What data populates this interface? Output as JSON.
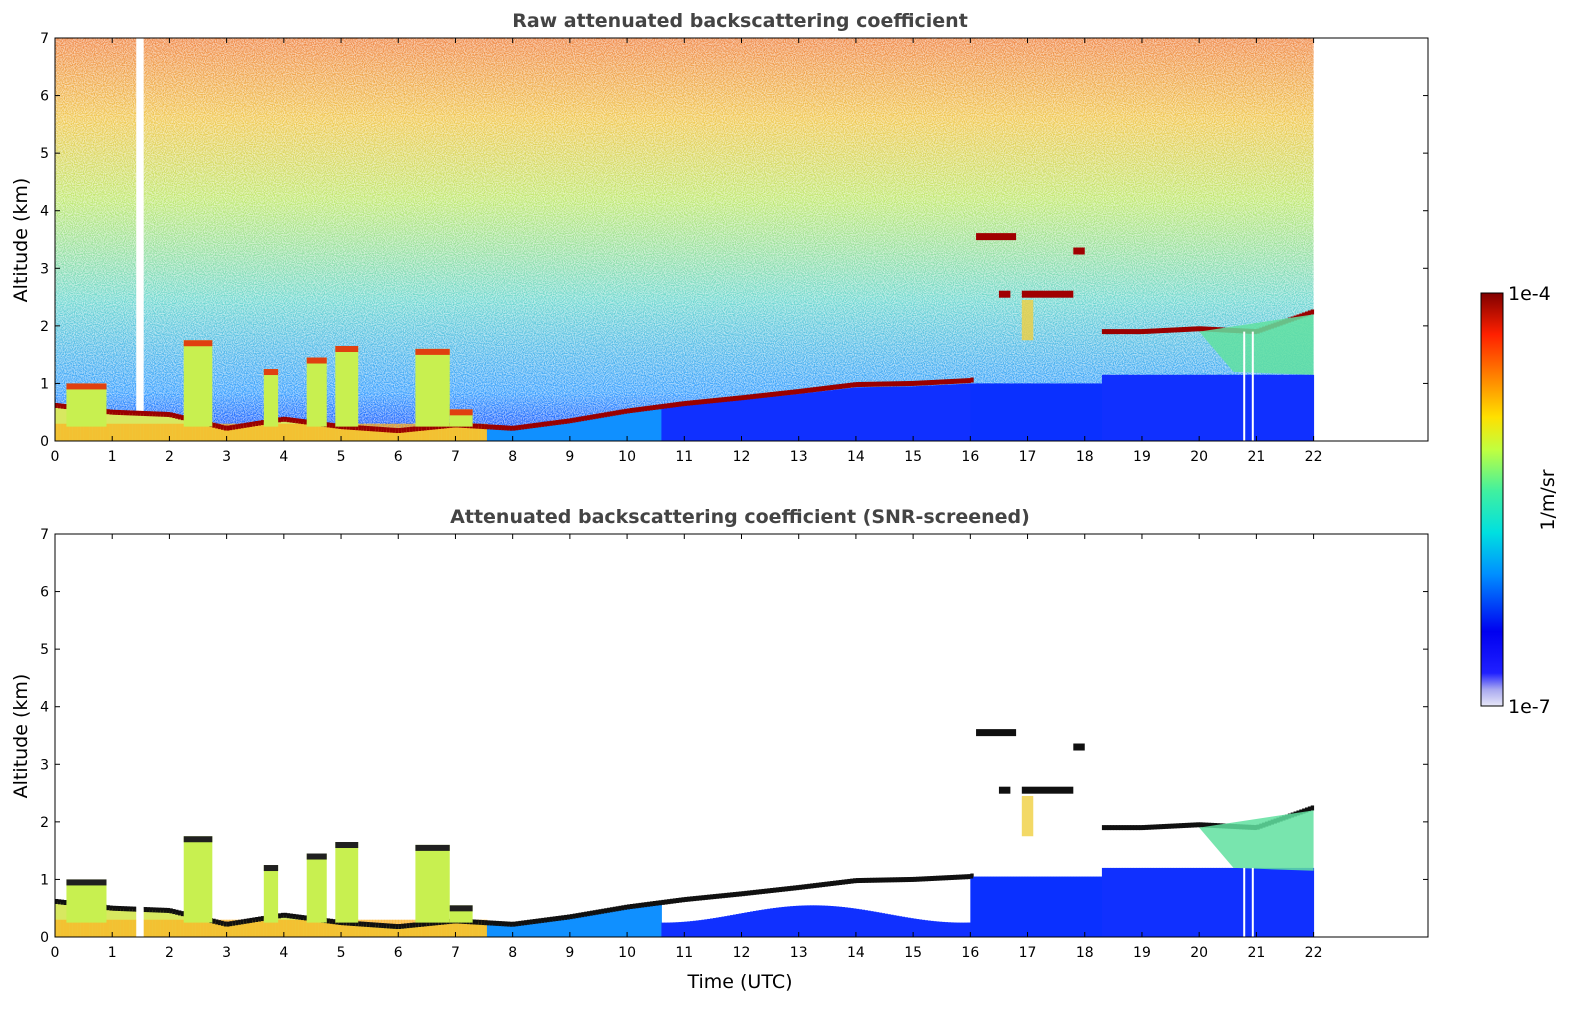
{
  "chart_data": [
    {
      "type": "heatmap",
      "title": "Raw attenuated backscattering coefficient",
      "ylabel": "Altitude (km)",
      "xlabel": "",
      "x_ticks": [
        "0",
        "1",
        "2",
        "3",
        "4",
        "5",
        "6",
        "7",
        "8",
        "9",
        "10",
        "11",
        "12",
        "13",
        "14",
        "15",
        "16",
        "17",
        "18",
        "19",
        "20",
        "21",
        "22"
      ],
      "y_ticks": [
        "0",
        "1",
        "2",
        "3",
        "4",
        "5",
        "6",
        "7"
      ],
      "xlim": [
        0,
        24
      ],
      "ylim": [
        0,
        7
      ],
      "data_time_range": [
        0,
        22
      ],
      "boundary_layer_top_km": [
        [
          0,
          0.62
        ],
        [
          1,
          0.5
        ],
        [
          2,
          0.46
        ],
        [
          3,
          0.22
        ],
        [
          4,
          0.38
        ],
        [
          5,
          0.25
        ],
        [
          6,
          0.18
        ],
        [
          7,
          0.28
        ],
        [
          8,
          0.22
        ],
        [
          9,
          0.35
        ],
        [
          10,
          0.52
        ],
        [
          11,
          0.65
        ],
        [
          12,
          0.75
        ],
        [
          13,
          0.86
        ],
        [
          14,
          0.98
        ],
        [
          15,
          1.0
        ],
        [
          16,
          1.05
        ],
        [
          18.3,
          1.9
        ],
        [
          19,
          1.9
        ],
        [
          20,
          1.95
        ],
        [
          21,
          1.9
        ],
        [
          22,
          2.25
        ]
      ],
      "cloud_layers_km": [
        {
          "t": [
            16.1,
            16.8
          ],
          "alt": 3.55
        },
        {
          "t": [
            17.8,
            18.0
          ],
          "alt": 3.3
        },
        {
          "t": [
            16.9,
            17.8
          ],
          "alt": 2.55
        },
        {
          "t": [
            16.5,
            16.7
          ],
          "alt": 2.55
        }
      ]
    },
    {
      "type": "heatmap",
      "title": "Attenuated backscattering coefficient (SNR-screened)",
      "ylabel": "Altitude (km)",
      "xlabel": "Time (UTC)",
      "x_ticks": [
        "0",
        "1",
        "2",
        "3",
        "4",
        "5",
        "6",
        "7",
        "8",
        "9",
        "10",
        "11",
        "12",
        "13",
        "14",
        "15",
        "16",
        "17",
        "18",
        "19",
        "20",
        "21",
        "22"
      ],
      "y_ticks": [
        "0",
        "1",
        "2",
        "3",
        "4",
        "5",
        "6",
        "7"
      ],
      "xlim": [
        0,
        24
      ],
      "ylim": [
        0,
        7
      ],
      "data_time_range": [
        0,
        22
      ]
    }
  ],
  "colorbar": {
    "label": "1/m/sr",
    "max_label": "1e-4",
    "min_label": "1e-7",
    "scale": "log",
    "colormap": "jet",
    "colors": [
      "#e8e8f8",
      "#b0b0f0",
      "#0000ff",
      "#0080ff",
      "#00e0e0",
      "#40ff80",
      "#c0ff40",
      "#ffe000",
      "#ff8000",
      "#ff2000",
      "#c00000",
      "#800000"
    ]
  }
}
